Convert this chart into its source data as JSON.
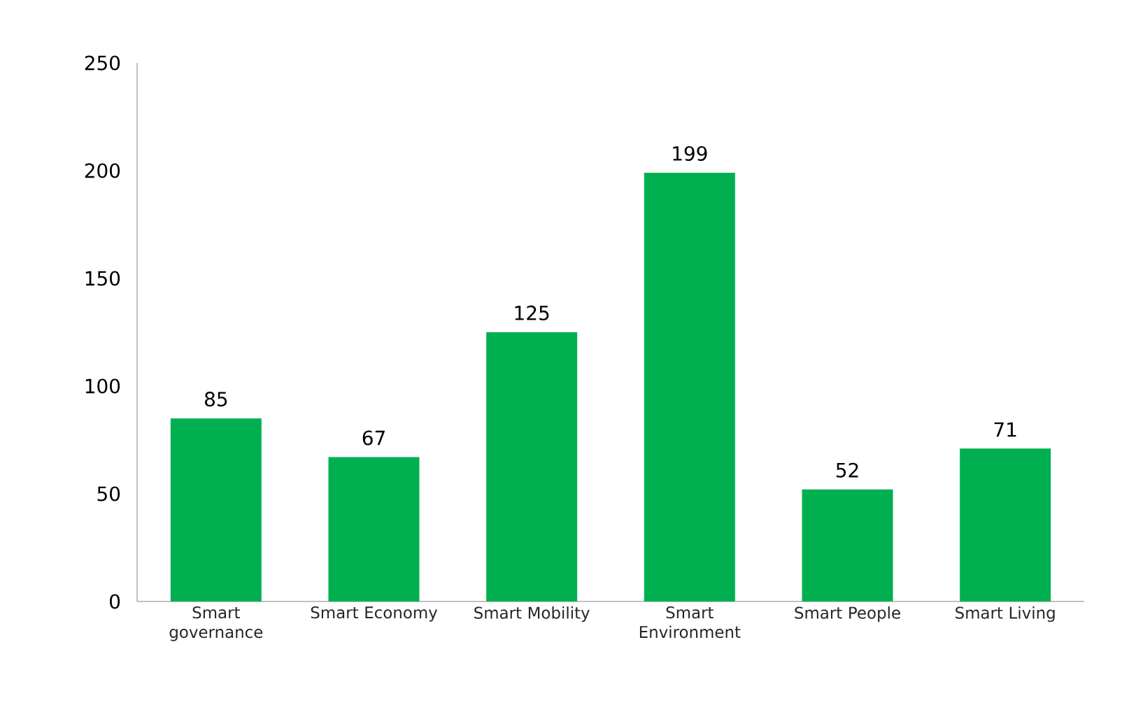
{
  "chart_data": {
    "type": "bar",
    "categories": [
      "Smart governance",
      "Smart Economy",
      "Smart Mobility",
      "Smart Environment",
      "Smart People",
      "Smart Living"
    ],
    "values": [
      85,
      67,
      125,
      199,
      52,
      71
    ],
    "color": "#00b050",
    "ylim": [
      0,
      250
    ],
    "yticks": [
      0,
      50,
      100,
      150,
      200,
      250
    ],
    "data_labels": true
  }
}
